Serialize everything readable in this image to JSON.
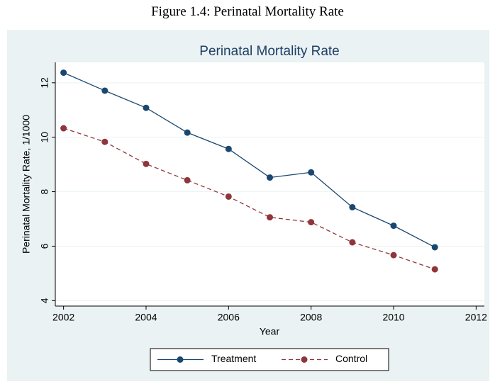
{
  "caption": "Figure 1.4: Perinatal Mortality Rate",
  "chart_data": {
    "type": "line",
    "title": "Perinatal Mortality Rate",
    "x_label": "Year",
    "y_label": "Perinatal Mortality Rate, 1/1000",
    "x": [
      2002,
      2003,
      2004,
      2005,
      2006,
      2007,
      2008,
      2009,
      2010,
      2011
    ],
    "series": [
      {
        "name": "Treatment",
        "color": "#1a476f",
        "dash": false,
        "values": [
          12.37,
          11.71,
          11.08,
          10.17,
          9.57,
          8.52,
          8.71,
          7.43,
          6.75,
          5.96
        ]
      },
      {
        "name": "Control",
        "color": "#90353b",
        "dash": true,
        "values": [
          10.33,
          9.83,
          9.02,
          8.42,
          7.82,
          7.06,
          6.88,
          6.14,
          5.67,
          5.15
        ]
      }
    ],
    "xlim": [
      2001.8,
      2012.2
    ],
    "xticks": [
      2002,
      2004,
      2006,
      2008,
      2010,
      2012
    ],
    "ylim": [
      3.8,
      12.75
    ],
    "yticks": [
      4,
      6,
      8,
      10,
      12
    ],
    "grid": true,
    "legend": "bottom"
  }
}
